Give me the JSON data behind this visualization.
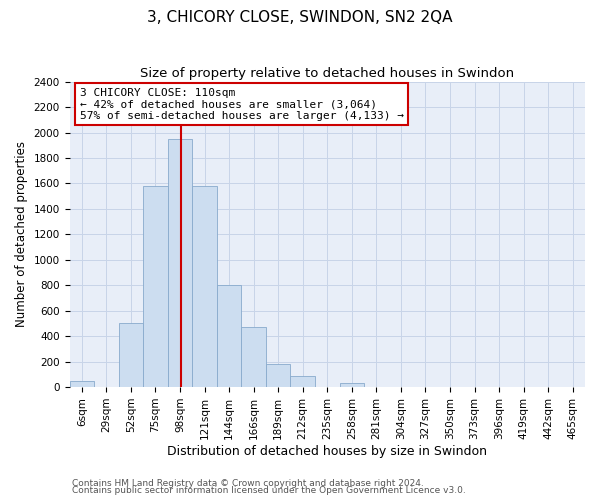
{
  "title": "3, CHICORY CLOSE, SWINDON, SN2 2QA",
  "subtitle": "Size of property relative to detached houses in Swindon",
  "xlabel": "Distribution of detached houses by size in Swindon",
  "ylabel": "Number of detached properties",
  "bar_labels": [
    "6sqm",
    "29sqm",
    "52sqm",
    "75sqm",
    "98sqm",
    "121sqm",
    "144sqm",
    "166sqm",
    "189sqm",
    "212sqm",
    "235sqm",
    "258sqm",
    "281sqm",
    "304sqm",
    "327sqm",
    "350sqm",
    "373sqm",
    "396sqm",
    "419sqm",
    "442sqm",
    "465sqm"
  ],
  "bar_heights": [
    50,
    0,
    500,
    1580,
    1950,
    1580,
    800,
    470,
    185,
    90,
    0,
    30,
    0,
    0,
    0,
    0,
    0,
    0,
    0,
    0,
    0
  ],
  "bar_color": "#ccddf0",
  "bar_edge_color": "#88aacc",
  "vline_color": "#cc0000",
  "annotation_title": "3 CHICORY CLOSE: 110sqm",
  "annotation_line1": "← 42% of detached houses are smaller (3,064)",
  "annotation_line2": "57% of semi-detached houses are larger (4,133) →",
  "annotation_box_color": "#ffffff",
  "annotation_box_edge": "#cc0000",
  "ylim": [
    0,
    2400
  ],
  "yticks": [
    0,
    200,
    400,
    600,
    800,
    1000,
    1200,
    1400,
    1600,
    1800,
    2000,
    2200,
    2400
  ],
  "footer1": "Contains HM Land Registry data © Crown copyright and database right 2024.",
  "footer2": "Contains public sector information licensed under the Open Government Licence v3.0.",
  "title_fontsize": 11,
  "subtitle_fontsize": 9.5,
  "xlabel_fontsize": 9,
  "ylabel_fontsize": 8.5,
  "tick_fontsize": 7.5,
  "footer_fontsize": 6.5,
  "annot_fontsize": 8.0,
  "bg_color": "#e8eef8"
}
